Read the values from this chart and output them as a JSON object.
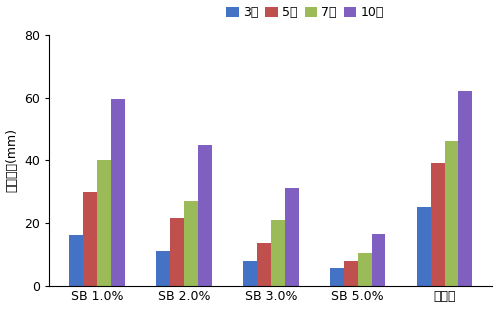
{
  "categories": [
    "SB 1.0%",
    "SB 2.0%",
    "SB 3.0%",
    "SB 5.0%",
    "무처리"
  ],
  "series": {
    "3일": [
      16,
      11,
      8,
      5.5,
      25
    ],
    "5일": [
      30,
      21.5,
      13.5,
      8,
      39
    ],
    "7일": [
      40,
      27,
      21,
      10.5,
      46
    ],
    "10일": [
      59.5,
      45,
      31,
      16.5,
      62
    ]
  },
  "colors": {
    "3일": "#4472C4",
    "5일": "#C0504D",
    "7일": "#9BBB59",
    "10일": "#7F5FBF"
  },
  "ylabel": "균지직경(mm)",
  "ylim": [
    0,
    80
  ],
  "yticks": [
    0,
    20,
    40,
    60,
    80
  ],
  "bar_width": 0.16,
  "legend_labels": [
    "3일",
    "5일",
    "7일",
    "10일"
  ]
}
